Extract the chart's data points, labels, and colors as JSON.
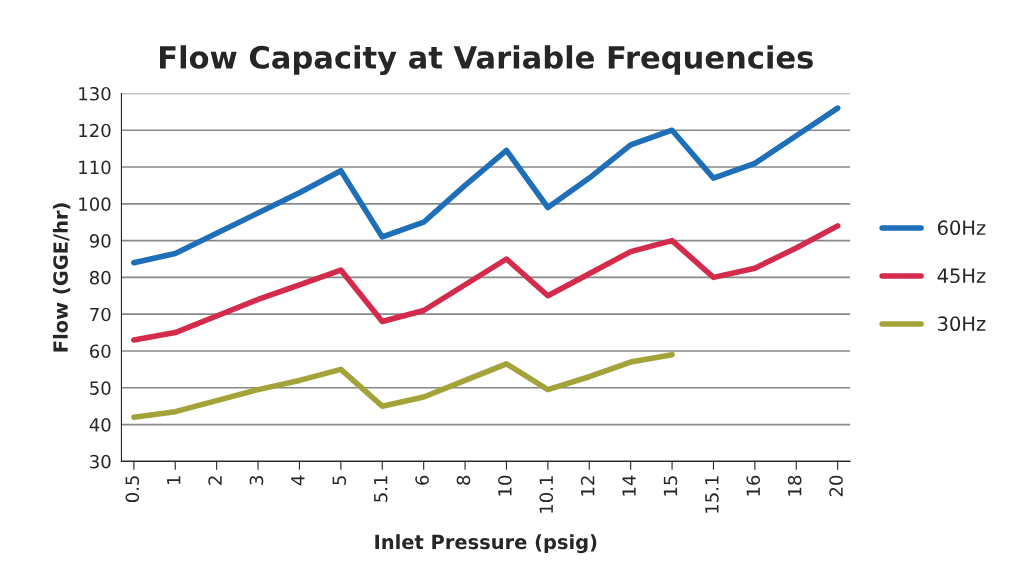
{
  "chart_data": {
    "type": "line",
    "title": "Flow Capacity at Variable Frequencies",
    "xlabel": "Inlet Pressure (psig)",
    "ylabel": "Flow (GGE/hr)",
    "categories": [
      "0.5",
      "1",
      "2",
      "3",
      "4",
      "5",
      "5.1",
      "6",
      "8",
      "10",
      "10.1",
      "12",
      "14",
      "15",
      "15.1",
      "16",
      "18",
      "20"
    ],
    "series": [
      {
        "name": "60Hz",
        "color": "#1f6fb8",
        "values": [
          84,
          86.5,
          92,
          97.5,
          103,
          109,
          91,
          95,
          105,
          114.5,
          99,
          107,
          116,
          120,
          107,
          111,
          118.5,
          126
        ]
      },
      {
        "name": "45Hz",
        "color": "#d42a4c",
        "values": [
          63,
          65,
          69.5,
          74,
          78,
          82,
          68,
          71,
          78,
          85,
          75,
          81,
          87,
          90,
          80,
          82.5,
          88,
          94
        ]
      },
      {
        "name": "30Hz",
        "color": "#a3a33a",
        "values": [
          42,
          43.5,
          46.5,
          49.5,
          52,
          55,
          45,
          47.5,
          52,
          56.5,
          49.5,
          53,
          57,
          59,
          null,
          null,
          null,
          null
        ]
      }
    ],
    "ylim": [
      30,
      130
    ],
    "yticks": [
      30,
      40,
      50,
      60,
      70,
      80,
      90,
      100,
      110,
      120,
      130
    ],
    "grid": "y",
    "legend": "right",
    "marker": "none",
    "line_style": "solid"
  }
}
